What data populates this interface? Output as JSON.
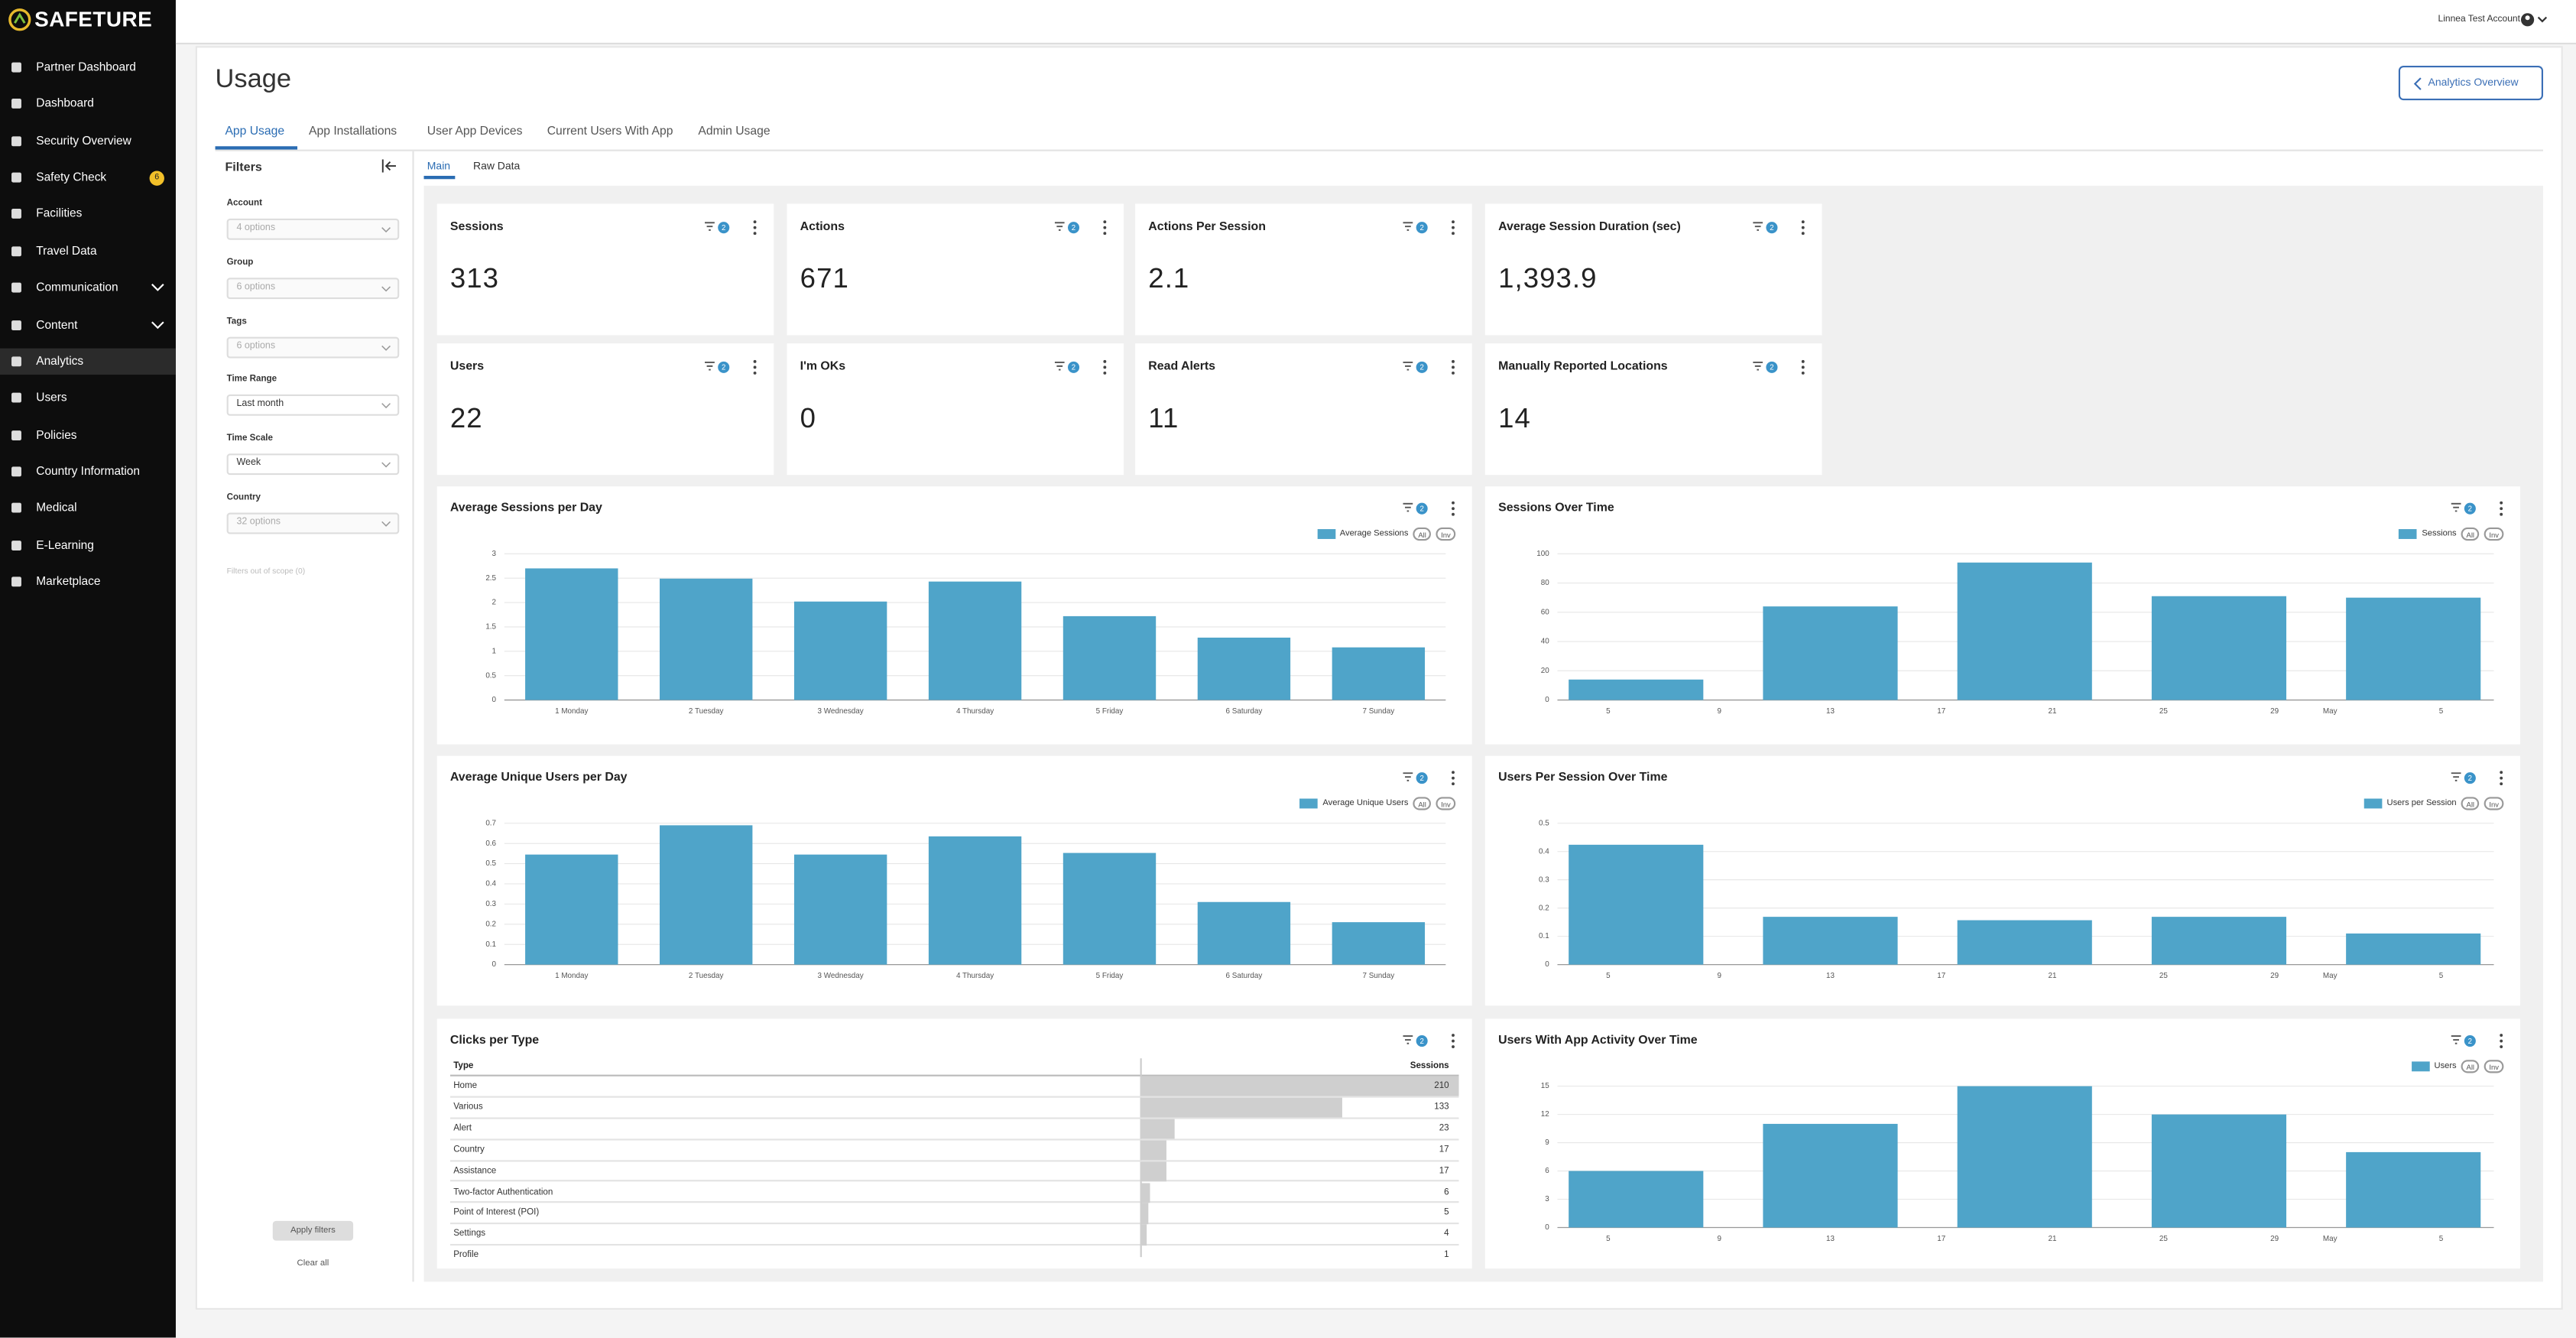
{
  "brand": "SAFETURE",
  "user": "Linnea Test Account",
  "nav": [
    {
      "label": "Partner Dashboard"
    },
    {
      "label": "Dashboard"
    },
    {
      "label": "Security Overview"
    },
    {
      "label": "Safety Check",
      "badge": 6
    },
    {
      "label": "Facilities"
    },
    {
      "label": "Travel Data"
    },
    {
      "label": "Communication",
      "expandable": true
    },
    {
      "label": "Content",
      "expandable": true
    },
    {
      "label": "Analytics",
      "active": true
    },
    {
      "label": "Users"
    },
    {
      "label": "Policies"
    },
    {
      "label": "Country Information"
    },
    {
      "label": "Medical"
    },
    {
      "label": "E-Learning"
    },
    {
      "label": "Marketplace"
    }
  ],
  "page": {
    "title": "Usage",
    "back_button": "Analytics Overview"
  },
  "tabs": [
    "App Usage",
    "App Installations",
    "User App Devices",
    "Current Users With App",
    "Admin Usage"
  ],
  "filters": {
    "title": "Filters",
    "fields": [
      {
        "label": "Account",
        "value": "4 options",
        "placeholder": true
      },
      {
        "label": "Group",
        "value": "6 options",
        "placeholder": true
      },
      {
        "label": "Tags",
        "value": "6 options",
        "placeholder": true
      },
      {
        "label": "Time Range",
        "value": "Last month"
      },
      {
        "label": "Time Scale",
        "value": "Week"
      },
      {
        "label": "Country",
        "value": "32 options",
        "placeholder": true
      }
    ],
    "out_of_scope": "Filters out of scope (0)",
    "apply": "Apply filters",
    "clear": "Clear all"
  },
  "subtabs": [
    "Main",
    "Raw Data"
  ],
  "kpis": [
    {
      "title": "Sessions",
      "value": 313,
      "filters": 2
    },
    {
      "title": "Actions",
      "value": 671,
      "filters": 2
    },
    {
      "title": "Actions Per Session",
      "value": 2.1,
      "filters": 2
    },
    {
      "title": "Average Session Duration (sec)",
      "value": 1393.9,
      "value_label": "1,393.9",
      "filters": 2
    },
    {
      "title": "Users",
      "value": 22,
      "filters": 2
    },
    {
      "title": "I'm OKs",
      "value": 0,
      "filters": 2
    },
    {
      "title": "Read Alerts",
      "value": 11,
      "filters": 2
    },
    {
      "title": "Manually Reported Locations",
      "value": 14,
      "filters": 2
    }
  ],
  "chart_data": [
    {
      "type": "bar",
      "title": "Average Sessions per Day",
      "filters": 2,
      "legend_toggles": [
        "All",
        "Inv"
      ],
      "categories": [
        "1 Monday",
        "2 Tuesday",
        "3 Wednesday",
        "4 Thursday",
        "5 Friday",
        "6 Saturday",
        "7 Sunday"
      ],
      "series": [
        {
          "name": "Average Sessions",
          "color": "#4fa4c9",
          "values": [
            2.7,
            2.49,
            2.02,
            2.43,
            1.72,
            1.28,
            1.08
          ]
        }
      ],
      "ylim": [
        0,
        3
      ],
      "yticks": [
        0,
        0.5,
        1,
        1.5,
        2,
        2.5,
        3
      ],
      "grid": true
    },
    {
      "type": "bar",
      "title": "Sessions Over Time",
      "filters": 2,
      "legend_toggles": [
        "All",
        "Inv"
      ],
      "categories": [
        null,
        null,
        null,
        null,
        null
      ],
      "xtick_labels": [
        "5",
        "9",
        "13",
        "17",
        "21",
        "25",
        "29",
        "May",
        "5"
      ],
      "series": [
        {
          "name": "Sessions",
          "color": "#4fa4c9",
          "values": [
            14,
            64,
            94,
            71,
            70
          ]
        }
      ],
      "ylim": [
        0,
        100
      ],
      "yticks": [
        0,
        20,
        40,
        60,
        80,
        100
      ],
      "grid": true
    },
    {
      "type": "bar",
      "title": "Average Unique Users per Day",
      "filters": 2,
      "legend_toggles": [
        "All",
        "Inv"
      ],
      "categories": [
        "1 Monday",
        "2 Tuesday",
        "3 Wednesday",
        "4 Thursday",
        "5 Friday",
        "6 Saturday",
        "7 Sunday"
      ],
      "series": [
        {
          "name": "Average Unique Users",
          "color": "#4fa4c9",
          "values": [
            0.545,
            0.69,
            0.545,
            0.635,
            0.553,
            0.31,
            0.21
          ]
        }
      ],
      "ylim": [
        0,
        0.7
      ],
      "yticks": [
        0,
        0.1,
        0.2,
        0.3,
        0.4,
        0.5,
        0.6,
        0.7
      ],
      "grid": true
    },
    {
      "type": "bar",
      "title": "Users Per Session Over Time",
      "filters": 2,
      "legend_toggles": [
        "All",
        "Inv"
      ],
      "categories": [
        null,
        null,
        null,
        null,
        null
      ],
      "xtick_labels": [
        "5",
        "9",
        "13",
        "17",
        "21",
        "25",
        "29",
        "May",
        "5"
      ],
      "series": [
        {
          "name": "Users per Session",
          "color": "#4fa4c9",
          "values": [
            0.424,
            0.169,
            0.157,
            0.169,
            0.11
          ]
        }
      ],
      "ylim": [
        0,
        0.5
      ],
      "yticks": [
        0,
        0.1,
        0.2,
        0.3,
        0.4,
        0.5
      ],
      "grid": true
    },
    {
      "type": "bar",
      "title": "Users With App Activity Over Time",
      "filters": 2,
      "legend_toggles": [
        "All",
        "Inv"
      ],
      "categories": [
        null,
        null,
        null,
        null,
        null
      ],
      "xtick_labels": [
        "5",
        "9",
        "13",
        "17",
        "21",
        "25",
        "29",
        "May",
        "5"
      ],
      "series": [
        {
          "name": "Users",
          "color": "#4fa4c9",
          "values": [
            6,
            11,
            15,
            12,
            8
          ]
        }
      ],
      "ylim": [
        0,
        15
      ],
      "yticks": [
        0,
        3,
        6,
        9,
        12,
        15
      ],
      "grid": true
    }
  ],
  "table": {
    "title": "Clicks per Type",
    "filters": 2,
    "columns": [
      "Type",
      "Sessions"
    ],
    "rows": [
      [
        "Home",
        210
      ],
      [
        "Various",
        133
      ],
      [
        "Alert",
        23
      ],
      [
        "Country",
        17
      ],
      [
        "Assistance",
        17
      ],
      [
        "Two-factor Authentication",
        6
      ],
      [
        "Point of Interest (POI)",
        5
      ],
      [
        "Settings",
        4
      ],
      [
        "Profile",
        1
      ]
    ]
  }
}
